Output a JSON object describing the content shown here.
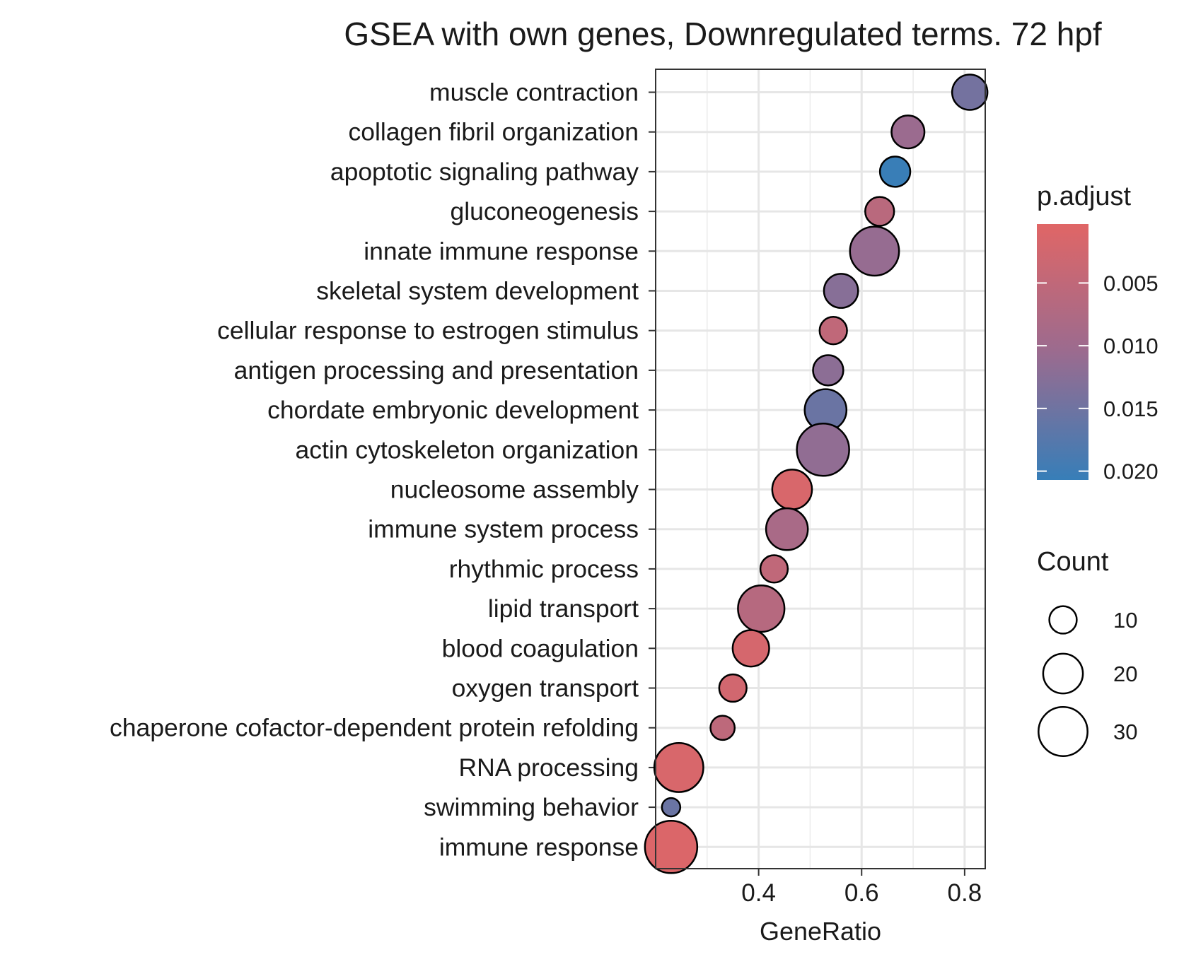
{
  "chart_data": {
    "type": "scatter",
    "title": "GSEA with own genes, Downregulated terms. 72 hpf",
    "xlabel": "GeneRatio",
    "ylabel": "",
    "xlim": [
      0.2,
      0.84
    ],
    "xticks": [
      0.4,
      0.6,
      0.8
    ],
    "xtick_labels": [
      "0.4",
      "0.6",
      "0.8"
    ],
    "grid": true,
    "terms": [
      {
        "term": "muscle contraction",
        "gene_ratio": 0.81,
        "count": 16,
        "p_adjust": 0.0145
      },
      {
        "term": "collagen fibril organization",
        "gene_ratio": 0.69,
        "count": 14,
        "p_adjust": 0.0105
      },
      {
        "term": "apoptotic signaling pathway",
        "gene_ratio": 0.665,
        "count": 12,
        "p_adjust": 0.0205
      },
      {
        "term": "gluconeogenesis",
        "gene_ratio": 0.635,
        "count": 11,
        "p_adjust": 0.006
      },
      {
        "term": "innate immune response",
        "gene_ratio": 0.625,
        "count": 30,
        "p_adjust": 0.011
      },
      {
        "term": "skeletal system development",
        "gene_ratio": 0.56,
        "count": 15,
        "p_adjust": 0.0125
      },
      {
        "term": "cellular response to estrogen stimulus",
        "gene_ratio": 0.545,
        "count": 10,
        "p_adjust": 0.005
      },
      {
        "term": "antigen processing and presentation",
        "gene_ratio": 0.535,
        "count": 12,
        "p_adjust": 0.012
      },
      {
        "term": "chordate embryonic development",
        "gene_ratio": 0.53,
        "count": 22,
        "p_adjust": 0.0155
      },
      {
        "term": "actin cytoskeleton organization",
        "gene_ratio": 0.525,
        "count": 34,
        "p_adjust": 0.0115
      },
      {
        "term": "nucleosome assembly",
        "gene_ratio": 0.465,
        "count": 20,
        "p_adjust": 0.0015
      },
      {
        "term": "immune system process",
        "gene_ratio": 0.455,
        "count": 22,
        "p_adjust": 0.0085
      },
      {
        "term": "rhythmic process",
        "gene_ratio": 0.43,
        "count": 10,
        "p_adjust": 0.005
      },
      {
        "term": "lipid transport",
        "gene_ratio": 0.405,
        "count": 27,
        "p_adjust": 0.0065
      },
      {
        "term": "blood coagulation",
        "gene_ratio": 0.385,
        "count": 17,
        "p_adjust": 0.002
      },
      {
        "term": "oxygen transport",
        "gene_ratio": 0.35,
        "count": 10,
        "p_adjust": 0.0025
      },
      {
        "term": "chaperone cofactor-dependent protein refolding",
        "gene_ratio": 0.33,
        "count": 8,
        "p_adjust": 0.0055
      },
      {
        "term": "RNA processing",
        "gene_ratio": 0.245,
        "count": 30,
        "p_adjust": 0.0015
      },
      {
        "term": "swimming behavior",
        "gene_ratio": 0.23,
        "count": 5,
        "p_adjust": 0.0155
      },
      {
        "term": "immune response",
        "gene_ratio": 0.23,
        "count": 34,
        "p_adjust": 0.001
      }
    ],
    "color_legend": {
      "title": "p.adjust",
      "ticks": [
        0.005,
        0.01,
        0.015,
        0.02
      ],
      "tick_labels": [
        "0.005",
        "0.010",
        "0.015",
        "0.020"
      ],
      "range": [
        0.0003,
        0.0207
      ],
      "low_color": "#e06666",
      "high_color": "#377eb8"
    },
    "size_legend": {
      "title": "Count",
      "values": [
        10,
        20,
        30
      ],
      "labels": [
        "10",
        "20",
        "30"
      ]
    }
  }
}
